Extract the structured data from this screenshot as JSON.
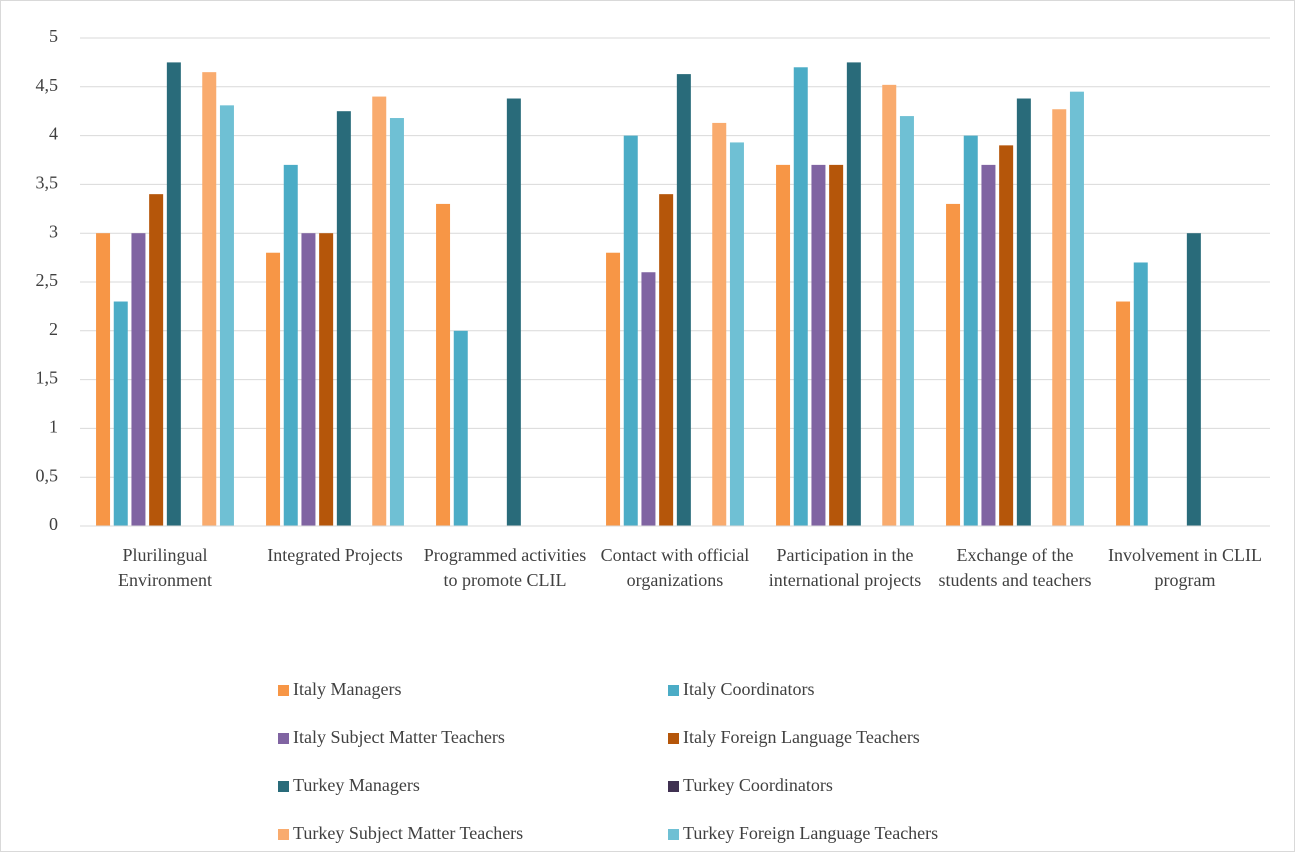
{
  "chart_data": {
    "type": "bar",
    "categories": [
      "Plurilingual Environment",
      "Integrated Projects",
      "Programmed activities to promote CLIL",
      "Contact with official organizations",
      "Participation in the international projects",
      "Exchange of the students and teachers",
      "Involvement in CLIL program"
    ],
    "series": [
      {
        "name": "Italy Managers",
        "color": "#f79646",
        "values": [
          3,
          2.8,
          3.3,
          2.8,
          3.7,
          3.3,
          2.3
        ]
      },
      {
        "name": "Italy Coordinators",
        "color": "#4bacc6",
        "values": [
          2.3,
          3.7,
          2,
          4,
          4.7,
          4,
          2.7
        ]
      },
      {
        "name": "Italy Subject Matter Teachers",
        "color": "#8064a2",
        "values": [
          3,
          3,
          null,
          2.6,
          3.7,
          3.7,
          null
        ]
      },
      {
        "name": "Italy Foreign Language Teachers",
        "color": "#b5560a",
        "values": [
          3.4,
          3,
          null,
          3.4,
          3.7,
          3.9,
          null
        ]
      },
      {
        "name": "Turkey Managers",
        "color": "#296b7a",
        "values": [
          4.75,
          4.25,
          4.38,
          4.63,
          4.75,
          4.38,
          3
        ]
      },
      {
        "name": "Turkey Coordinators",
        "color": "#403152",
        "values": [
          null,
          null,
          null,
          null,
          null,
          null,
          null
        ]
      },
      {
        "name": "Turkey Subject Matter Teachers",
        "color": "#f9ab6e",
        "values": [
          4.65,
          4.4,
          null,
          4.13,
          4.52,
          4.27,
          null
        ]
      },
      {
        "name": "Turkey Foreign Language Teachers",
        "color": "#6fc0d4",
        "values": [
          4.31,
          4.18,
          null,
          3.93,
          4.2,
          4.45,
          null
        ]
      }
    ],
    "ylim": [
      0,
      5
    ],
    "yticks": [
      0,
      {
        "value": 0.5,
        "label": "0,5"
      },
      1,
      {
        "value": 1.5,
        "label": "1,5"
      },
      2,
      {
        "value": 2.5,
        "label": "2,5"
      },
      3,
      {
        "value": 3.5,
        "label": "3,5"
      },
      4,
      {
        "value": 4.5,
        "label": "4,5"
      },
      5
    ],
    "grid": true,
    "legend": "bottom"
  }
}
